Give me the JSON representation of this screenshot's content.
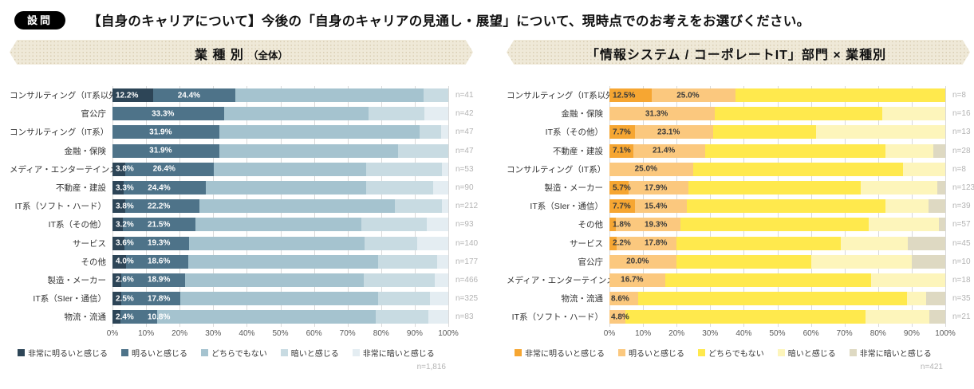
{
  "header": {
    "badge": "設問",
    "title": "【自身のキャリアについて】今後の「自身のキャリアの見通し・展望」について、現時点でのお考えをお選びください。"
  },
  "chart_data": [
    {
      "type": "bar",
      "stacked": true,
      "orientation": "horizontal",
      "title_main": "業 種 別",
      "title_sub": "（全体）",
      "xlim": [
        0,
        100
      ],
      "x_ticks": [
        "0%",
        "10%",
        "20%",
        "30%",
        "40%",
        "50%",
        "60%",
        "70%",
        "80%",
        "90%",
        "100%"
      ],
      "legend": [
        "非常に明るいと感じる",
        "明るいと感じる",
        "どちらでもない",
        "暗いと感じる",
        "非常に暗いと感じる"
      ],
      "colors": [
        "#2d4557",
        "#4e7389",
        "#a5c3cf",
        "#c8dbe2",
        "#e4edf2"
      ],
      "value_label_color": "#ffffff",
      "total_n": "n=1,816",
      "rows": [
        {
          "category": "コンサルティング（IT系以外）",
          "n": "n=41",
          "values": [
            12.2,
            24.4,
            56.1,
            7.3,
            0
          ],
          "labels": [
            "12.2%",
            "24.4%"
          ]
        },
        {
          "category": "官公庁",
          "n": "n=42",
          "values": [
            0,
            33.3,
            42.9,
            16.7,
            7.1
          ],
          "labels": [
            "",
            "33.3%"
          ]
        },
        {
          "category": "コンサルティング（IT系）",
          "n": "n=47",
          "values": [
            0,
            31.9,
            59.6,
            6.4,
            2.1
          ],
          "labels": [
            "",
            "31.9%"
          ]
        },
        {
          "category": "金融・保険",
          "n": "n=47",
          "values": [
            0,
            31.9,
            53.2,
            14.9,
            0
          ],
          "labels": [
            "",
            "31.9%"
          ]
        },
        {
          "category": "メディア・エンターテインメント",
          "n": "n=53",
          "values": [
            3.8,
            26.4,
            45.3,
            22.6,
            1.9
          ],
          "labels": [
            "3.8%",
            "26.4%"
          ]
        },
        {
          "category": "不動産・建設",
          "n": "n=90",
          "values": [
            3.3,
            24.4,
            47.8,
            20.0,
            4.5
          ],
          "labels": [
            "3.3%",
            "24.4%"
          ]
        },
        {
          "category": "IT系（ソフト・ハード）",
          "n": "n=212",
          "values": [
            3.8,
            22.2,
            58.0,
            14.1,
            1.9
          ],
          "labels": [
            "3.8%",
            "22.2%"
          ]
        },
        {
          "category": "IT系（その他）",
          "n": "n=93",
          "values": [
            3.2,
            21.5,
            49.5,
            19.3,
            6.5
          ],
          "labels": [
            "3.2%",
            "21.5%"
          ]
        },
        {
          "category": "サービス",
          "n": "n=140",
          "values": [
            3.6,
            19.3,
            52.1,
            15.7,
            9.3
          ],
          "labels": [
            "3.6%",
            "19.3%"
          ]
        },
        {
          "category": "その他",
          "n": "n=177",
          "values": [
            4.0,
            18.6,
            56.5,
            17.5,
            3.4
          ],
          "labels": [
            "4.0%",
            "18.6%"
          ]
        },
        {
          "category": "製造・メーカー",
          "n": "n=466",
          "values": [
            2.6,
            18.9,
            53.3,
            21.1,
            4.1
          ],
          "labels": [
            "2.6%",
            "18.9%"
          ]
        },
        {
          "category": "IT系（SIer・通信）",
          "n": "n=325",
          "values": [
            2.5,
            17.8,
            58.7,
            15.6,
            5.4
          ],
          "labels": [
            "2.5%",
            "17.8%"
          ]
        },
        {
          "category": "物流・流通",
          "n": "n=83",
          "values": [
            2.4,
            10.8,
            65.1,
            15.7,
            6.0
          ],
          "labels": [
            "2.4%",
            "10.8%"
          ]
        }
      ]
    },
    {
      "type": "bar",
      "stacked": true,
      "orientation": "horizontal",
      "title_main": "「情報システム / コーポレートIT」部門 × 業種別",
      "title_sub": "",
      "xlim": [
        0,
        100
      ],
      "x_ticks": [
        "0%",
        "10%",
        "20%",
        "30%",
        "40%",
        "50%",
        "60%",
        "70%",
        "80%",
        "90%",
        "100%"
      ],
      "legend": [
        "非常に明るいと感じる",
        "明るいと感じる",
        "どちらでもない",
        "暗いと感じる",
        "非常に暗いと感じる"
      ],
      "colors": [
        "#f6a632",
        "#fbc87e",
        "#ffe94d",
        "#fdf5bb",
        "#ded9c2"
      ],
      "value_label_color": "#3a3a3a",
      "total_n": "n=421",
      "rows": [
        {
          "category": "コンサルティング（IT系以外）",
          "n": "n=8",
          "values": [
            12.5,
            25.0,
            62.5,
            0,
            0
          ],
          "labels": [
            "12.5%",
            "25.0%"
          ]
        },
        {
          "category": "金融・保険",
          "n": "n=16",
          "values": [
            0,
            31.3,
            50.0,
            18.7,
            0
          ],
          "labels": [
            "",
            "31.3%"
          ]
        },
        {
          "category": "IT系（その他）",
          "n": "n=13",
          "values": [
            7.7,
            23.1,
            30.8,
            38.4,
            0
          ],
          "labels": [
            "7.7%",
            "23.1%"
          ]
        },
        {
          "category": "不動産・建設",
          "n": "n=28",
          "values": [
            7.1,
            21.4,
            53.6,
            14.3,
            3.6
          ],
          "labels": [
            "7.1%",
            "21.4%"
          ]
        },
        {
          "category": "コンサルティング（IT系）",
          "n": "n=8",
          "values": [
            0,
            25.0,
            62.5,
            12.5,
            0
          ],
          "labels": [
            "",
            "25.0%"
          ]
        },
        {
          "category": "製造・メーカー",
          "n": "n=123",
          "values": [
            5.7,
            17.9,
            51.2,
            22.8,
            2.4
          ],
          "labels": [
            "5.7%",
            "17.9%"
          ]
        },
        {
          "category": "IT系（SIer・通信）",
          "n": "n=39",
          "values": [
            7.7,
            15.4,
            59.0,
            12.8,
            5.1
          ],
          "labels": [
            "7.7%",
            "15.4%"
          ]
        },
        {
          "category": "その他",
          "n": "n=57",
          "values": [
            1.8,
            19.3,
            56.1,
            21.0,
            1.8
          ],
          "labels": [
            "1.8%",
            "19.3%"
          ]
        },
        {
          "category": "サービス",
          "n": "n=45",
          "values": [
            2.2,
            17.8,
            48.9,
            20.0,
            11.1
          ],
          "labels": [
            "2.2%",
            "17.8%"
          ]
        },
        {
          "category": "官公庁",
          "n": "n=10",
          "values": [
            0,
            20.0,
            40.0,
            30.0,
            10.0
          ],
          "labels": [
            "",
            "20.0%"
          ]
        },
        {
          "category": "メディア・エンターテインメント",
          "n": "n=18",
          "values": [
            0,
            16.7,
            61.1,
            22.2,
            0
          ],
          "labels": [
            "",
            "16.7%"
          ]
        },
        {
          "category": "物流・流通",
          "n": "n=35",
          "values": [
            0,
            8.6,
            80.0,
            5.7,
            5.7
          ],
          "labels": [
            "",
            "8.6%"
          ]
        },
        {
          "category": "IT系（ソフト・ハード）",
          "n": "n=21",
          "values": [
            0,
            4.8,
            71.4,
            19.0,
            4.8
          ],
          "labels": [
            "",
            "4.8%"
          ]
        }
      ]
    }
  ]
}
